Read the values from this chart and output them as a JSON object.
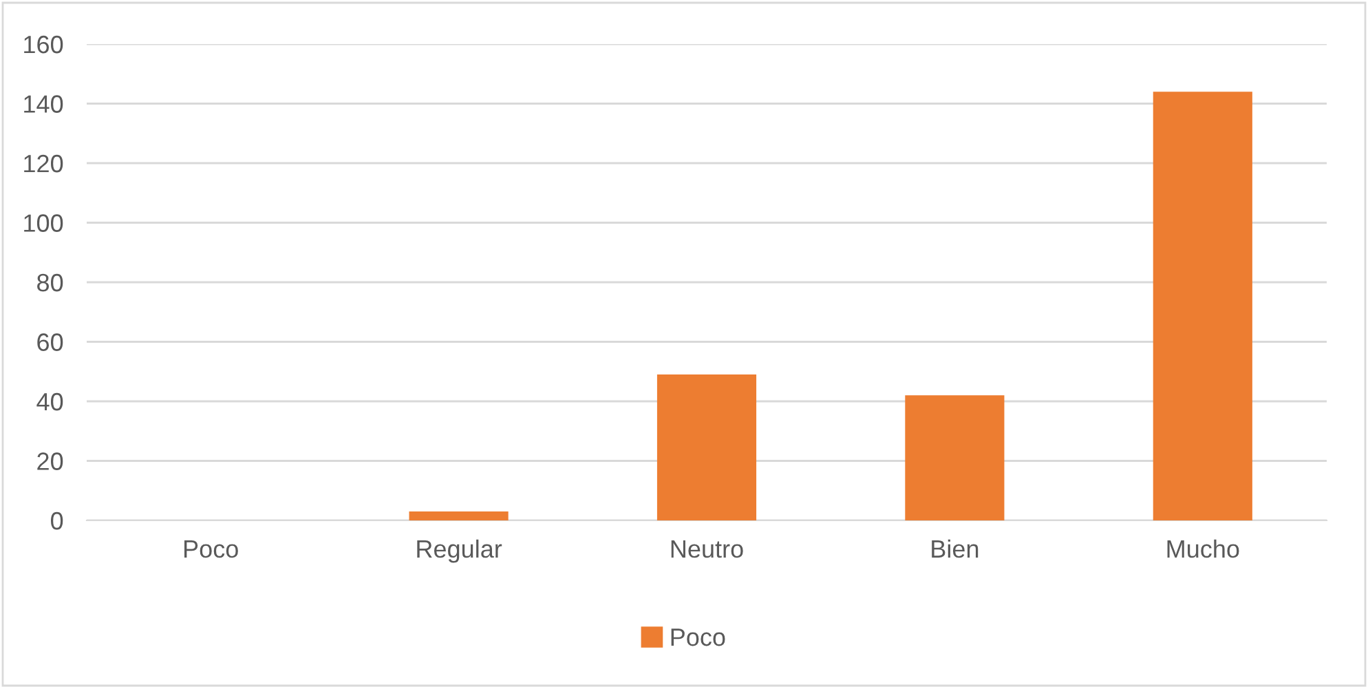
{
  "chart_data": {
    "type": "bar",
    "categories": [
      "Poco",
      "Regular",
      "Neutro",
      "Bien",
      "Mucho"
    ],
    "series": [
      {
        "name": "Poco",
        "color": "#ed7d31",
        "values": [
          0,
          3,
          49,
          42,
          144
        ]
      }
    ],
    "ylim": [
      0,
      160
    ],
    "yticks": [
      0,
      20,
      40,
      60,
      80,
      100,
      120,
      140,
      160
    ],
    "grid": "y",
    "legend": "bottom"
  }
}
